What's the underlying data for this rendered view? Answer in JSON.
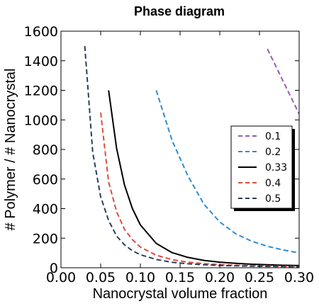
{
  "chart_data": {
    "type": "line",
    "title": "Phase diagram",
    "xlabel": "Nanocrystal volume fraction",
    "ylabel": "# Polymer / # Nanocrystal",
    "xlim": [
      0.0,
      0.3
    ],
    "ylim": [
      0,
      1600
    ],
    "xticks": [
      0.0,
      0.05,
      0.1,
      0.15,
      0.2,
      0.25,
      0.3
    ],
    "xtick_labels": [
      "0.00",
      "0.05",
      "0.10",
      "0.15",
      "0.20",
      "0.25",
      "0.30"
    ],
    "yticks": [
      0,
      200,
      400,
      600,
      800,
      1000,
      1200,
      1400,
      1600
    ],
    "ytick_labels": [
      "0",
      "200",
      "400",
      "600",
      "800",
      "1000",
      "1200",
      "1400",
      "1600"
    ],
    "grid": false,
    "legend_position": "middle-right",
    "x": [
      0.03,
      0.04,
      0.05,
      0.06,
      0.07,
      0.08,
      0.09,
      0.1,
      0.12,
      0.14,
      0.16,
      0.18,
      0.2,
      0.22,
      0.24,
      0.26,
      0.28,
      0.3
    ],
    "series": [
      {
        "name": "0.1",
        "color": "#9c58b0",
        "style": "dashed",
        "values": [
          null,
          null,
          null,
          null,
          null,
          null,
          null,
          null,
          null,
          null,
          null,
          null,
          null,
          null,
          null,
          1480,
          1260,
          1040
        ]
      },
      {
        "name": "0.2",
        "color": "#2e8ccc",
        "style": "dashed",
        "values": [
          null,
          null,
          null,
          null,
          null,
          null,
          null,
          null,
          1200,
          860,
          620,
          430,
          310,
          230,
          180,
          145,
          120,
          100
        ]
      },
      {
        "name": "0.33",
        "color": "#000000",
        "style": "solid",
        "values": [
          null,
          null,
          null,
          1200,
          810,
          560,
          400,
          290,
          165,
          102,
          70,
          50,
          38,
          30,
          24,
          20,
          17,
          15
        ]
      },
      {
        "name": "0.4",
        "color": "#e14b3c",
        "style": "dashed",
        "values": [
          null,
          null,
          1050,
          580,
          380,
          260,
          190,
          140,
          85,
          55,
          38,
          28,
          21,
          17,
          14,
          12,
          10,
          9
        ]
      },
      {
        "name": "0.5",
        "color": "#2b3f58",
        "style": "dashed",
        "values": [
          1500,
          780,
          480,
          320,
          215,
          155,
          115,
          88,
          56,
          37,
          27,
          20,
          16,
          13,
          11,
          9,
          8,
          7
        ]
      }
    ]
  }
}
